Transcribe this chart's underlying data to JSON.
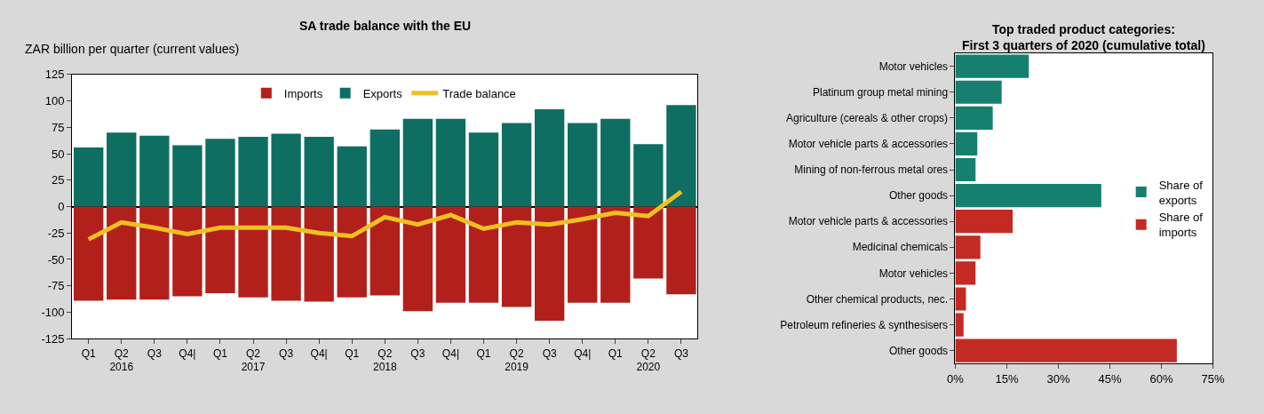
{
  "chart_data": [
    {
      "type": "bar",
      "title": "SA trade balance with the EU",
      "ylabel": "ZAR billion per quarter (current values)",
      "categories": [
        "Q1",
        "Q2\n2016",
        "Q3",
        "Q4|",
        "Q1",
        "Q2\n2017",
        "Q3",
        "Q4|",
        "Q1",
        "Q2\n2018",
        "Q3",
        "Q4|",
        "Q1",
        "Q2\n2019",
        "Q3",
        "Q4|",
        "Q1",
        "Q2\n2020",
        "Q3"
      ],
      "stacked": true,
      "ylim": [
        -125,
        125
      ],
      "yticks": [
        -125,
        -100,
        -75,
        -50,
        -25,
        0,
        25,
        50,
        75,
        100,
        125
      ],
      "legend": "top",
      "marker": "none",
      "series": [
        {
          "name": "Imports",
          "color": "#b2201c",
          "values": [
            -89,
            -88,
            -88,
            -85,
            -82,
            -86,
            -89,
            -90,
            -86,
            -84,
            -99,
            -91,
            -91,
            -95,
            -108,
            -91,
            -91,
            -68,
            -83
          ]
        },
        {
          "name": "Exports",
          "color": "#0e6e62",
          "values": [
            56,
            70,
            67,
            58,
            64,
            66,
            69,
            66,
            57,
            73,
            83,
            83,
            70,
            79,
            92,
            79,
            83,
            59,
            96
          ]
        },
        {
          "name": "Trade balance",
          "type": "line",
          "color": "#f0c020",
          "values": [
            -31,
            -15,
            -20,
            -26,
            -20,
            -20,
            -20,
            -25,
            -28,
            -10,
            -17,
            -8,
            -21,
            -15,
            -17,
            -12,
            -6,
            -9,
            14
          ]
        }
      ]
    },
    {
      "type": "bar",
      "orientation": "horizontal",
      "title": "Top traded product categories:\nFirst 3 quarters of 2020 (cumulative total)",
      "categories": [
        "Motor vehicles",
        "Platinum group metal mining",
        "Agriculture (cereals & other crops)",
        "Motor vehicle parts & accessories",
        "Mining of non-ferrous metal ores",
        "Other goods",
        "Motor vehicle parts & accessories",
        "Medicinal chemicals",
        "Motor vehicles",
        "Other chemical products, nec.",
        "Petroleum refineries & synthesisers",
        "Other goods"
      ],
      "xlim": [
        0,
        75
      ],
      "xticks": [
        {
          "value": 0,
          "label": "0%"
        },
        {
          "value": 15,
          "label": "15%"
        },
        {
          "value": 30,
          "label": "30%"
        },
        {
          "value": 45,
          "label": "45%"
        },
        {
          "value": 60,
          "label": "60%"
        },
        {
          "value": 75,
          "label": "75%"
        }
      ],
      "legend": "right",
      "series": [
        {
          "name": "Share of\nexports",
          "color": "#158070",
          "values": [
            21.4,
            13.5,
            10.9,
            6.4,
            5.9,
            42.5,
            null,
            null,
            null,
            null,
            null,
            null
          ]
        },
        {
          "name": "Share of\nimports",
          "color": "#c42a24",
          "values": [
            null,
            null,
            null,
            null,
            null,
            null,
            16.7,
            7.3,
            5.9,
            3.1,
            2.4,
            64.5
          ]
        }
      ]
    }
  ]
}
